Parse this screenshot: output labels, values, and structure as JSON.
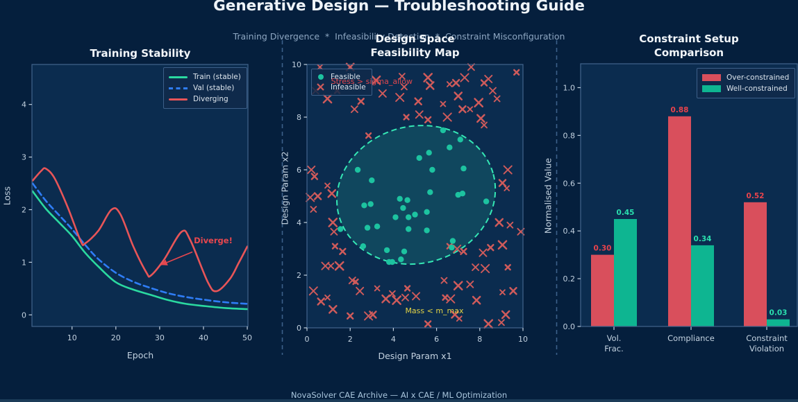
{
  "header": {
    "title": "Generative Design — Troubleshooting Guide",
    "subtitle": "Training Divergence  *  Infeasibility Detection  *  Constraint Misconfiguration"
  },
  "footer": {
    "text": "NovaSolver CAE Archive — AI x CAE / ML Optimization"
  },
  "colors": {
    "figure_bg": "#051f3d",
    "plot_bg": "#0b2c4f",
    "spine": "#42658d",
    "tick_text": "#c3d2e0",
    "separator": "#3c618a"
  },
  "chart_data": [
    {
      "id": "training",
      "type": "line",
      "title": "Training Stability",
      "xlabel": "Epoch",
      "ylabel": "Loss",
      "xlim": [
        0.85,
        50.15
      ],
      "ylim": [
        -0.22,
        4.76
      ],
      "xticks": [
        10,
        20,
        30,
        40,
        50
      ],
      "yticks": [
        0,
        1,
        2,
        3,
        4
      ],
      "grid": false,
      "legend_position": "upper right",
      "series": [
        {
          "name": "Train (stable)",
          "color": "#2bd9a0",
          "style": "solid",
          "points": [
            [
              1,
              2.35
            ],
            [
              4,
              2.02
            ],
            [
              7,
              1.76
            ],
            [
              10,
              1.5
            ],
            [
              13,
              1.18
            ],
            [
              16,
              0.92
            ],
            [
              20,
              0.62
            ],
            [
              24,
              0.48
            ],
            [
              28,
              0.38
            ],
            [
              32,
              0.28
            ],
            [
              36,
              0.21
            ],
            [
              40,
              0.17
            ],
            [
              45,
              0.13
            ],
            [
              50,
              0.11
            ]
          ]
        },
        {
          "name": "Val (stable)",
          "color": "#2f7df6",
          "style": "dashed",
          "points": [
            [
              1,
              2.5
            ],
            [
              4,
              2.17
            ],
            [
              7,
              1.9
            ],
            [
              10,
              1.63
            ],
            [
              13,
              1.33
            ],
            [
              16,
              1.06
            ],
            [
              20,
              0.8
            ],
            [
              24,
              0.63
            ],
            [
              28,
              0.51
            ],
            [
              32,
              0.41
            ],
            [
              36,
              0.34
            ],
            [
              40,
              0.29
            ],
            [
              45,
              0.24
            ],
            [
              50,
              0.21
            ]
          ]
        },
        {
          "name": "Diverging",
          "color": "#e85558",
          "style": "solid",
          "points": [
            [
              1,
              2.55
            ],
            [
              3,
              2.74
            ],
            [
              4,
              2.78
            ],
            [
              6,
              2.6
            ],
            [
              9,
              2.05
            ],
            [
              12,
              1.4
            ],
            [
              13,
              1.36
            ],
            [
              16,
              1.6
            ],
            [
              19,
              2.0
            ],
            [
              21,
              1.92
            ],
            [
              24,
              1.3
            ],
            [
              27,
              0.8
            ],
            [
              28,
              0.75
            ],
            [
              31,
              1.05
            ],
            [
              35,
              1.58
            ],
            [
              37,
              1.42
            ],
            [
              41,
              0.62
            ],
            [
              43,
              0.45
            ],
            [
              46,
              0.68
            ],
            [
              48,
              0.98
            ],
            [
              50,
              1.3
            ]
          ]
        }
      ],
      "annotation": {
        "text": "Diverge!",
        "color": "#e8474e",
        "xy": [
          30.3,
          0.95
        ],
        "xytext": [
          37.8,
          1.42
        ]
      }
    },
    {
      "id": "feasibility",
      "type": "scatter",
      "title": "Design Space\nFeasibility Map",
      "xlabel": "Design Param x1",
      "ylabel": "Design Param x2",
      "xlim": [
        0,
        10
      ],
      "ylim": [
        0,
        10
      ],
      "xticks": [
        0,
        2,
        4,
        6,
        8,
        10
      ],
      "yticks": [
        0,
        2,
        4,
        6,
        8,
        10
      ],
      "grid": false,
      "legend": [
        "Feasible",
        "Infeasible"
      ],
      "feasible_color": "#1dc3a0",
      "infeasible_color": "#cf5b5b",
      "feasible_region": {
        "center": [
          5.05,
          5.05
        ],
        "rx": 3.7,
        "ry": 2.6,
        "angle_deg": 15,
        "stroke": "#35e8b5",
        "fill": "rgba(45,220,175,0.16)"
      },
      "feasible_points": [
        [
          6.3,
          7.5
        ],
        [
          7.1,
          7.15
        ],
        [
          5.65,
          6.65
        ],
        [
          5.2,
          6.45
        ],
        [
          6.6,
          6.85
        ],
        [
          5.8,
          6.0
        ],
        [
          7.25,
          6.05
        ],
        [
          2.35,
          6.0
        ],
        [
          5.7,
          5.15
        ],
        [
          7.0,
          5.05
        ],
        [
          7.2,
          5.1
        ],
        [
          8.3,
          4.8
        ],
        [
          3.0,
          5.6
        ],
        [
          2.65,
          4.65
        ],
        [
          2.95,
          4.7
        ],
        [
          4.65,
          4.85
        ],
        [
          4.45,
          4.55
        ],
        [
          4.1,
          4.2
        ],
        [
          4.7,
          4.2
        ],
        [
          5.0,
          4.3
        ],
        [
          5.55,
          4.4
        ],
        [
          4.3,
          4.9
        ],
        [
          4.7,
          3.75
        ],
        [
          5.55,
          3.7
        ],
        [
          2.8,
          3.8
        ],
        [
          3.25,
          3.85
        ],
        [
          1.55,
          3.75
        ],
        [
          6.75,
          3.3
        ],
        [
          6.7,
          3.05
        ],
        [
          2.6,
          3.1
        ],
        [
          3.7,
          2.95
        ],
        [
          4.5,
          2.9
        ],
        [
          4.35,
          2.6
        ],
        [
          3.8,
          2.5
        ],
        [
          3.95,
          2.5
        ]
      ],
      "infeasible_points": [
        [
          0.6,
          9.9
        ],
        [
          2.0,
          9.9
        ],
        [
          4.4,
          9.55
        ],
        [
          5.6,
          9.5
        ],
        [
          7.6,
          9.9
        ],
        [
          9.7,
          9.7
        ],
        [
          8.4,
          9.45
        ],
        [
          8.2,
          9.3
        ],
        [
          7.3,
          9.5
        ],
        [
          6.9,
          9.3
        ],
        [
          6.6,
          9.25
        ],
        [
          5.7,
          9.2
        ],
        [
          4.5,
          9.15
        ],
        [
          3.2,
          9.4
        ],
        [
          0.4,
          9.0
        ],
        [
          1.4,
          9.0
        ],
        [
          3.5,
          8.9
        ],
        [
          2.5,
          8.6
        ],
        [
          4.3,
          8.75
        ],
        [
          5.15,
          8.6
        ],
        [
          6.3,
          8.5
        ],
        [
          7.0,
          8.8
        ],
        [
          8.8,
          8.7
        ],
        [
          0.95,
          8.7
        ],
        [
          2.2,
          8.3
        ],
        [
          4.6,
          8.0
        ],
        [
          5.2,
          8.1
        ],
        [
          5.6,
          7.9
        ],
        [
          6.5,
          8.0
        ],
        [
          7.2,
          8.3
        ],
        [
          7.55,
          8.3
        ],
        [
          8.05,
          7.95
        ],
        [
          8.2,
          7.7
        ],
        [
          7.95,
          8.55
        ],
        [
          8.6,
          9.0
        ],
        [
          2.85,
          7.3
        ],
        [
          0.2,
          6.0
        ],
        [
          0.35,
          5.75
        ],
        [
          0.15,
          4.95
        ],
        [
          0.5,
          5.0
        ],
        [
          0.95,
          5.4
        ],
        [
          1.15,
          5.1
        ],
        [
          0.3,
          4.5
        ],
        [
          1.2,
          4.0
        ],
        [
          1.25,
          3.65
        ],
        [
          1.3,
          3.1
        ],
        [
          0.85,
          2.35
        ],
        [
          1.65,
          2.9
        ],
        [
          9.3,
          6.0
        ],
        [
          9.05,
          5.5
        ],
        [
          9.25,
          5.3
        ],
        [
          8.9,
          4.0
        ],
        [
          9.4,
          3.9
        ],
        [
          9.05,
          3.15
        ],
        [
          9.9,
          3.65
        ],
        [
          9.3,
          2.3
        ],
        [
          8.15,
          2.85
        ],
        [
          8.5,
          3.05
        ],
        [
          8.25,
          2.25
        ],
        [
          9.55,
          1.4
        ],
        [
          9.05,
          1.35
        ],
        [
          9.2,
          0.5
        ],
        [
          9.0,
          0.2
        ],
        [
          8.4,
          0.15
        ],
        [
          7.8,
          2.3
        ],
        [
          6.6,
          3.1
        ],
        [
          6.95,
          3.0
        ],
        [
          7.25,
          2.9
        ],
        [
          0.3,
          1.4
        ],
        [
          0.65,
          1.0
        ],
        [
          0.95,
          1.15
        ],
        [
          1.2,
          0.7
        ],
        [
          1.1,
          2.35
        ],
        [
          1.5,
          2.35
        ],
        [
          2.1,
          1.8
        ],
        [
          2.25,
          1.75
        ],
        [
          2.45,
          1.4
        ],
        [
          2.0,
          0.45
        ],
        [
          2.85,
          0.45
        ],
        [
          3.05,
          0.5
        ],
        [
          3.25,
          1.5
        ],
        [
          3.65,
          1.1
        ],
        [
          3.95,
          1.3
        ],
        [
          4.15,
          1.05
        ],
        [
          4.55,
          1.15
        ],
        [
          4.65,
          1.5
        ],
        [
          5.05,
          1.2
        ],
        [
          5.6,
          0.15
        ],
        [
          6.65,
          1.1
        ],
        [
          6.85,
          0.5
        ],
        [
          7.05,
          0.35
        ],
        [
          7.85,
          1.05
        ],
        [
          6.35,
          1.8
        ],
        [
          7.0,
          1.6
        ],
        [
          7.55,
          1.65
        ],
        [
          6.4,
          1.15
        ]
      ],
      "text_labels": [
        {
          "text": "Stress > sigma_allow",
          "x": 3.0,
          "y": 9.35,
          "color": "#e0474e"
        },
        {
          "text": "Mass < m_max",
          "x": 5.9,
          "y": 0.62,
          "color": "#e3d345"
        }
      ]
    },
    {
      "id": "constraints",
      "type": "bar",
      "title": "Constraint Setup\nComparison",
      "xlabel": "",
      "ylabel": "Normalised Value",
      "ylim": [
        0,
        1.1
      ],
      "yticks": [
        "0.0",
        "0.2",
        "0.4",
        "0.6",
        "0.8",
        "1.0"
      ],
      "grid": false,
      "legend_position": "upper right",
      "categories": [
        "Vol.\nFrac.",
        "Compliance",
        "Constraint\nViolation"
      ],
      "series": [
        {
          "name": "Over-constrained",
          "color": "#d94f5c",
          "label_color": "#e8434c",
          "values": [
            0.3,
            0.88,
            0.52
          ],
          "labels": [
            "0.30",
            "0.88",
            "0.52"
          ]
        },
        {
          "name": "Well-constrained",
          "color": "#0eb591",
          "label_color": "#2adfae",
          "values": [
            0.45,
            0.34,
            0.03
          ],
          "labels": [
            "0.45",
            "0.34",
            "0.03"
          ]
        }
      ]
    }
  ]
}
